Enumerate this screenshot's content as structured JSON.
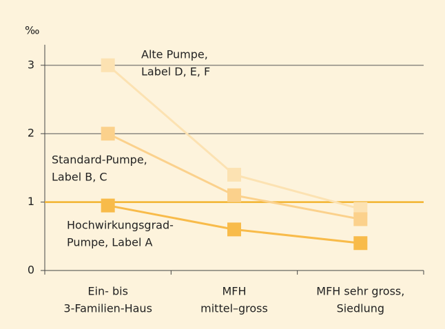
{
  "chart_data": {
    "type": "line",
    "y_label": "‰",
    "categories": [
      [
        "Ein- bis",
        "3-Familien-Haus"
      ],
      [
        "MFH",
        "mittel–gross"
      ],
      [
        "MFH sehr gross,",
        "Siedlung"
      ]
    ],
    "series": [
      {
        "name": [
          "Alte Pumpe,",
          "Label D, E, F"
        ],
        "color": "#fce2b2",
        "values": [
          3,
          1.4,
          0.9
        ]
      },
      {
        "name": [
          "Standard-Pumpe,",
          "Label B, C"
        ],
        "color": "#fbd18c",
        "values": [
          2,
          1.1,
          0.75
        ]
      },
      {
        "name": [
          "Hochwirkungsgrad-",
          "Pumpe, Label A"
        ],
        "color": "#f8bb4a",
        "values": [
          0.95,
          0.6,
          0.4
        ]
      }
    ],
    "reference_line": {
      "value": 1,
      "color": "#f2b32e"
    },
    "ylim": [
      0,
      3.3
    ],
    "yticks": [
      0,
      1,
      2,
      3
    ],
    "grid": true
  }
}
